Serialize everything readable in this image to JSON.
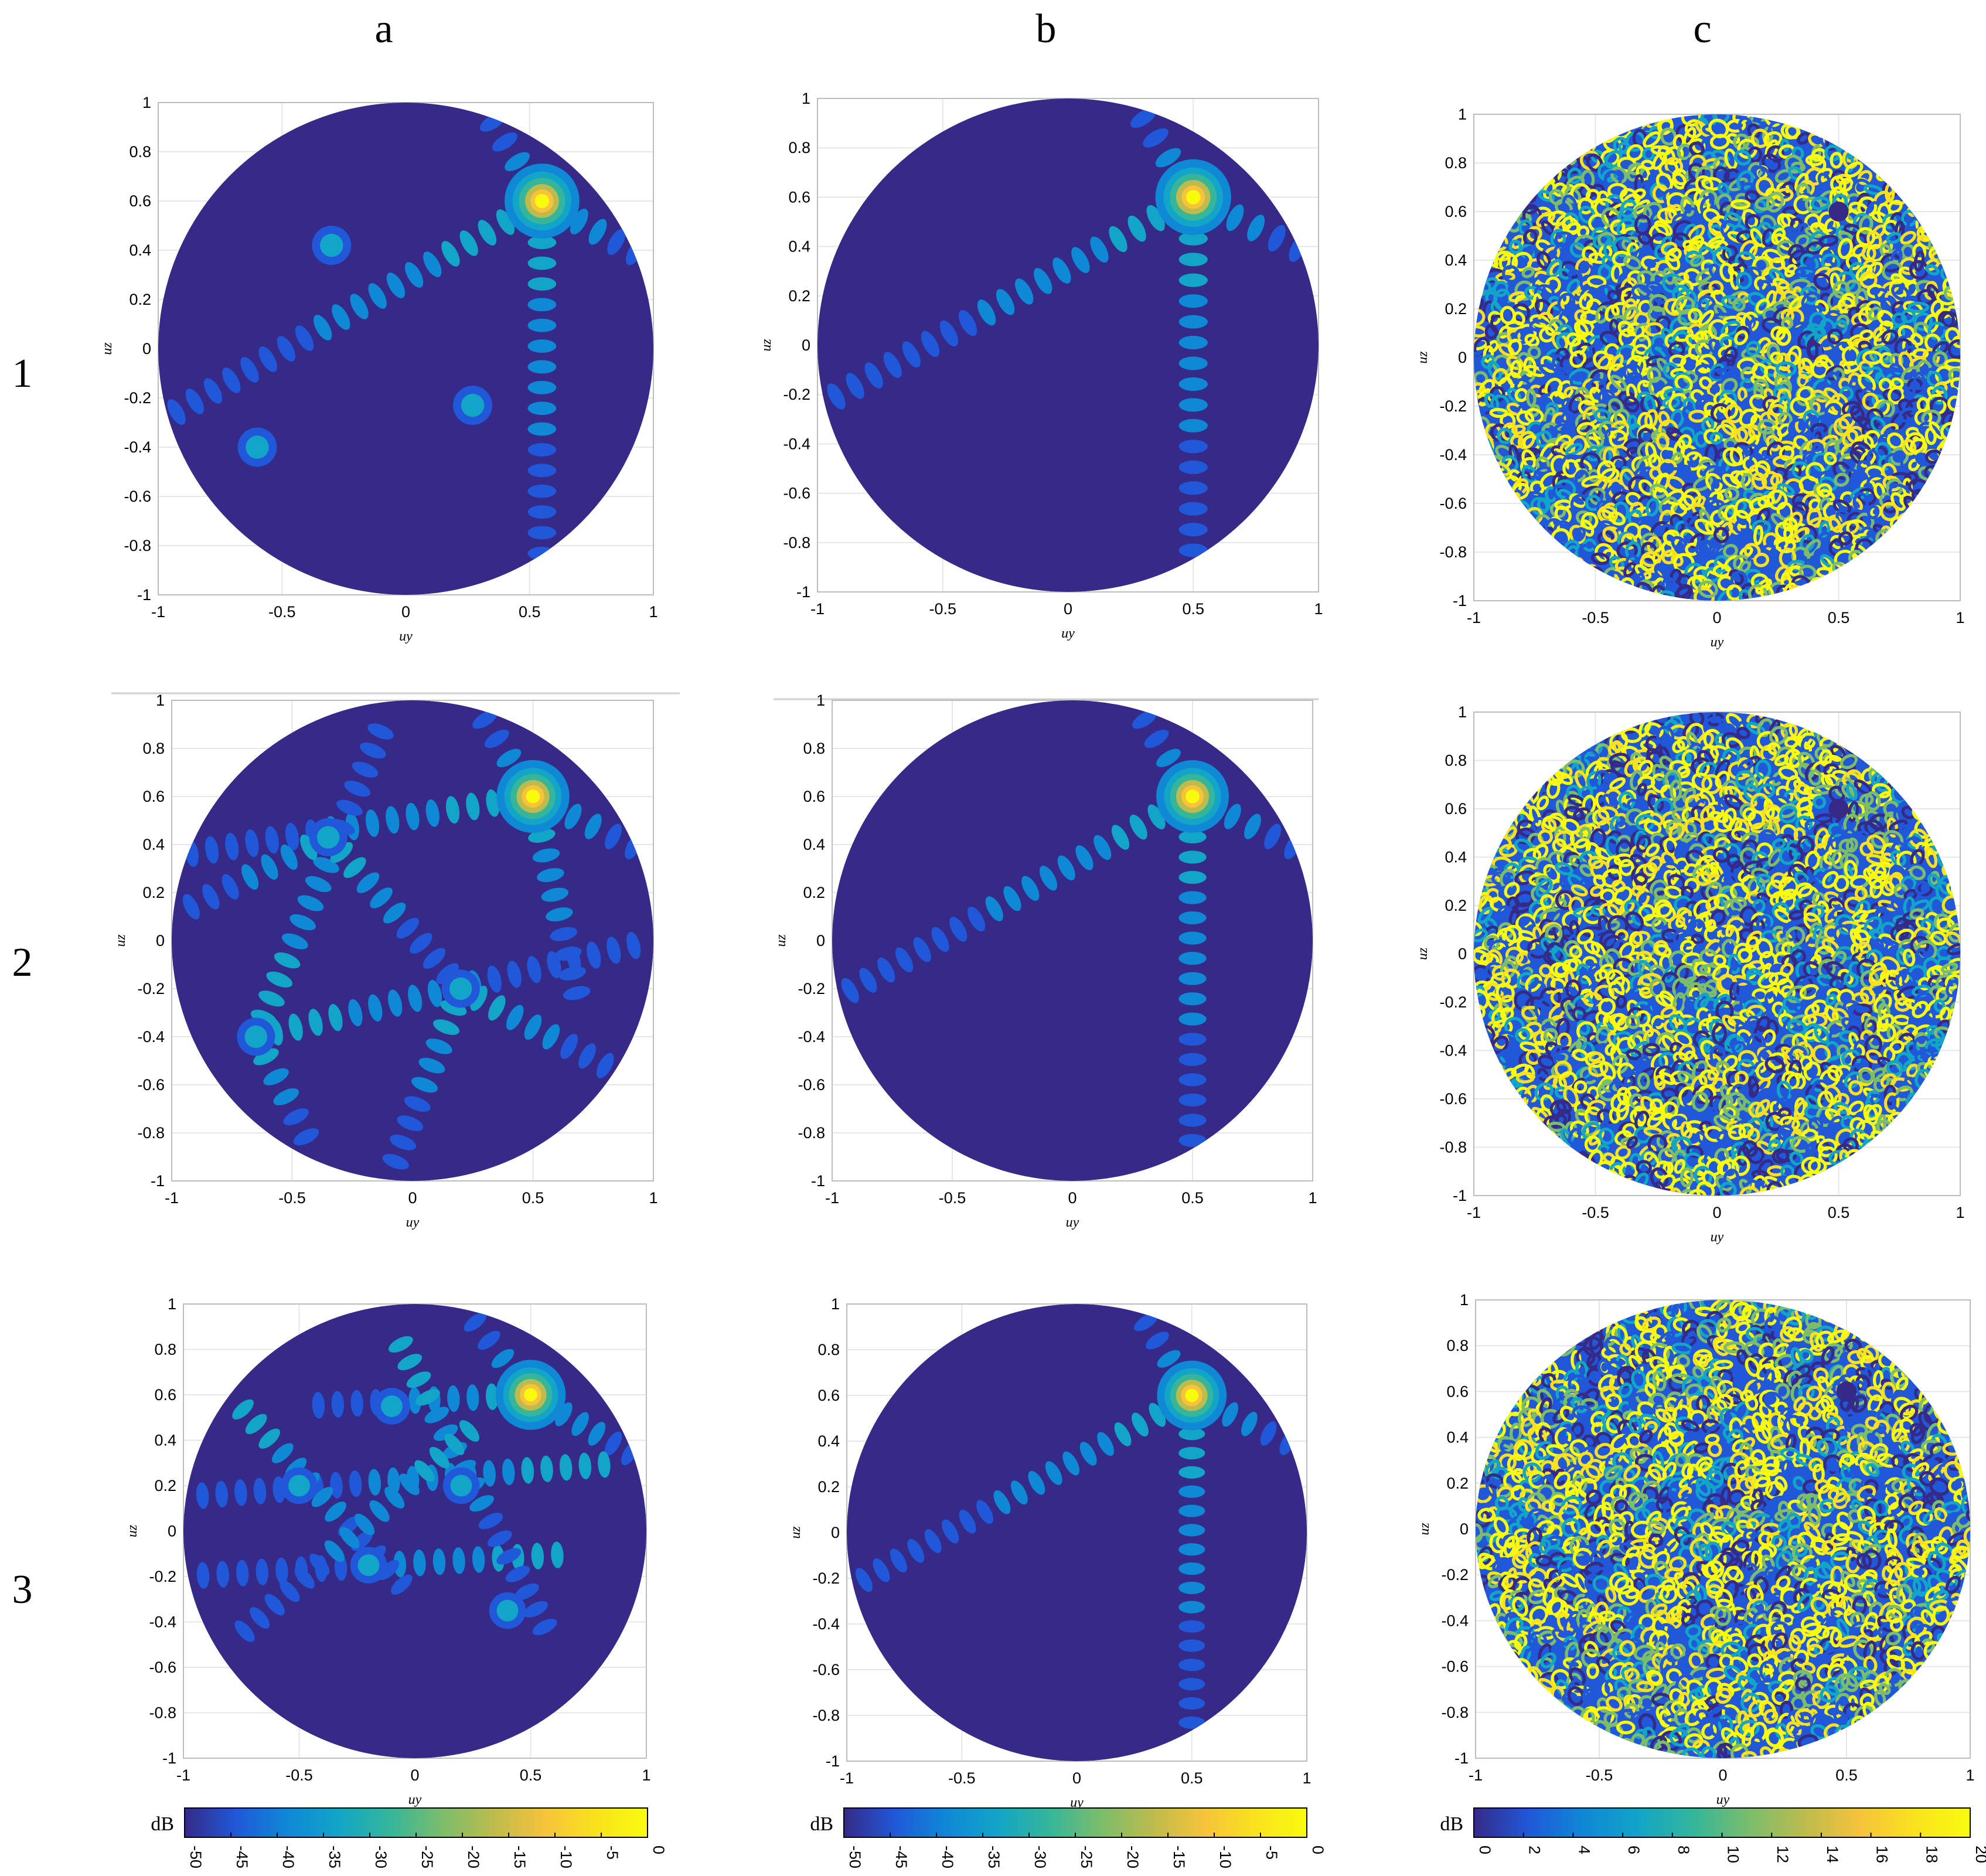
{
  "column_labels": [
    "a",
    "b",
    "c"
  ],
  "row_labels": [
    "1",
    "2",
    "3"
  ],
  "colors": {
    "background": "#ffffff",
    "axis": "#000000",
    "grid": "#e6e6e6",
    "parula": [
      "#352a87",
      "#2058d9",
      "#0f88d6",
      "#12a5c7",
      "#35b69a",
      "#7bbd6b",
      "#bdbb4e",
      "#f6c33b",
      "#f9e21d",
      "#f9fb0e"
    ]
  },
  "chart_data": [
    {
      "type": "heatmap",
      "panel": "1a",
      "xlabel": "uy",
      "ylabel": "uz",
      "xlim": [
        -1,
        1
      ],
      "ylim": [
        -1,
        1
      ],
      "xticks": [
        "-1",
        "-0.5",
        "0",
        "0.5",
        "1"
      ],
      "yticks": [
        "-1",
        "-0.8",
        "-0.6",
        "-0.4",
        "-0.2",
        "0",
        "0.2",
        "0.4",
        "0.6",
        "0.8",
        "1"
      ],
      "mask": "unit-circle",
      "grid": true,
      "colormap": "parula",
      "units": "dB",
      "main_beam": {
        "uy": 0.55,
        "uz": 0.6
      },
      "grating_lobes": [
        {
          "uy": -0.3,
          "uz": 0.42
        },
        {
          "uy": 0.27,
          "uz": -0.23
        },
        {
          "uy": -0.6,
          "uz": -0.4
        }
      ],
      "lobe_lines": [
        {
          "from": [
            0.55,
            0.6
          ],
          "to": [
            -1,
            -0.3
          ]
        },
        {
          "from": [
            0.55,
            0.6
          ],
          "to": [
            0.55,
            -1
          ]
        },
        {
          "from": [
            0.55,
            0.6
          ],
          "to": [
            0.3,
            1
          ]
        },
        {
          "from": [
            0.55,
            0.6
          ],
          "to": [
            1,
            0.35
          ]
        }
      ]
    },
    {
      "type": "heatmap",
      "panel": "1b",
      "xlabel": "uy",
      "ylabel": "uz",
      "xlim": [
        -1,
        1
      ],
      "ylim": [
        -1,
        1
      ],
      "xticks": [
        "-1",
        "-0.5",
        "0",
        "0.5",
        "1"
      ],
      "yticks": [
        "-1",
        "-0.8",
        "-0.6",
        "-0.4",
        "-0.2",
        "0",
        "0.2",
        "0.4",
        "0.6",
        "0.8",
        "1"
      ],
      "mask": "unit-circle",
      "grid": true,
      "colormap": "parula",
      "units": "dB",
      "main_beam": {
        "uy": 0.5,
        "uz": 0.6
      },
      "grating_lobes": [],
      "lobe_lines": [
        {
          "from": [
            0.5,
            0.6
          ],
          "to": [
            -1,
            -0.25
          ]
        },
        {
          "from": [
            0.5,
            0.6
          ],
          "to": [
            0.5,
            -1
          ]
        },
        {
          "from": [
            0.5,
            0.6
          ],
          "to": [
            0.25,
            1
          ]
        },
        {
          "from": [
            0.5,
            0.6
          ],
          "to": [
            1,
            0.35
          ]
        }
      ]
    },
    {
      "type": "heatmap",
      "panel": "1c",
      "xlabel": "uy",
      "ylabel": "uz",
      "xlim": [
        -1,
        1
      ],
      "ylim": [
        -1,
        1
      ],
      "xticks": [
        "-1",
        "-0.5",
        "0",
        "0.5",
        "1"
      ],
      "yticks": [
        "-1",
        "-0.8",
        "-0.6",
        "-0.4",
        "-0.2",
        "0",
        "0.2",
        "0.4",
        "0.6",
        "0.8",
        "1"
      ],
      "mask": "unit-circle",
      "grid": true,
      "colormap": "parula",
      "units": "dB difference",
      "main_beam": {
        "uy": 0.5,
        "uz": 0.6
      }
    },
    {
      "type": "heatmap",
      "panel": "2a",
      "xlabel": "uy",
      "ylabel": "uz",
      "xlim": [
        -1,
        1
      ],
      "ylim": [
        -1,
        1
      ],
      "xticks": [
        "-1",
        "-0.5",
        "0",
        "0.5",
        "1"
      ],
      "yticks": [
        "-1",
        "-0.8",
        "-0.6",
        "-0.4",
        "-0.2",
        "0",
        "0.2",
        "0.4",
        "0.6",
        "0.8",
        "1"
      ],
      "mask": "unit-circle",
      "grid": true,
      "colormap": "parula",
      "units": "dB",
      "main_beam": {
        "uy": 0.5,
        "uz": 0.6
      },
      "grating_lobes": [
        {
          "uy": -0.35,
          "uz": 0.43
        },
        {
          "uy": 0.2,
          "uz": -0.2
        },
        {
          "uy": -0.65,
          "uz": -0.4
        }
      ],
      "lobe_lines": [
        {
          "from": [
            0.5,
            0.6
          ],
          "to": [
            -1,
            0.35
          ]
        },
        {
          "from": [
            0.5,
            0.6
          ],
          "to": [
            0.25,
            1
          ]
        },
        {
          "from": [
            0.5,
            0.6
          ],
          "to": [
            0.7,
            -0.3
          ]
        },
        {
          "from": [
            0.5,
            0.6
          ],
          "to": [
            1,
            0.35
          ]
        },
        {
          "from": [
            -0.65,
            -0.4
          ],
          "to": [
            1,
            0
          ]
        },
        {
          "from": [
            -0.65,
            -0.4
          ],
          "to": [
            -0.1,
            0.95
          ]
        },
        {
          "from": [
            -0.65,
            -0.4
          ],
          "to": [
            -0.4,
            -0.9
          ]
        },
        {
          "from": [
            0.2,
            -0.2
          ],
          "to": [
            -0.1,
            -1
          ]
        },
        {
          "from": [
            0.2,
            -0.2
          ],
          "to": [
            0.95,
            -0.6
          ]
        },
        {
          "from": [
            -0.35,
            0.43
          ],
          "to": [
            0.2,
            -0.2
          ]
        },
        {
          "from": [
            -0.35,
            0.43
          ],
          "to": [
            -1,
            0.1
          ]
        }
      ]
    },
    {
      "type": "heatmap",
      "panel": "2b",
      "xlabel": "uy",
      "ylabel": "uz",
      "xlim": [
        -1,
        1
      ],
      "ylim": [
        -1,
        1
      ],
      "xticks": [
        "-1",
        "-0.5",
        "0",
        "0.5",
        "1"
      ],
      "yticks": [
        "-1",
        "-0.8",
        "-0.6",
        "-0.4",
        "-0.2",
        "0",
        "0.2",
        "0.4",
        "0.6",
        "0.8",
        "1"
      ],
      "mask": "unit-circle",
      "grid": true,
      "colormap": "parula",
      "units": "dB",
      "main_beam": {
        "uy": 0.5,
        "uz": 0.6
      },
      "grating_lobes": [],
      "lobe_lines": [
        {
          "from": [
            0.5,
            0.6
          ],
          "to": [
            -1,
            -0.25
          ]
        },
        {
          "from": [
            0.5,
            0.6
          ],
          "to": [
            0.5,
            -1
          ]
        },
        {
          "from": [
            0.5,
            0.6
          ],
          "to": [
            0.25,
            1
          ]
        },
        {
          "from": [
            0.5,
            0.6
          ],
          "to": [
            1,
            0.35
          ]
        }
      ]
    },
    {
      "type": "heatmap",
      "panel": "2c",
      "xlabel": "uy",
      "ylabel": "uz",
      "xlim": [
        -1,
        1
      ],
      "ylim": [
        -1,
        1
      ],
      "xticks": [
        "-1",
        "-0.5",
        "0",
        "0.5",
        "1"
      ],
      "yticks": [
        "-1",
        "-0.8",
        "-0.6",
        "-0.4",
        "-0.2",
        "0",
        "0.2",
        "0.4",
        "0.6",
        "0.8",
        "1"
      ],
      "mask": "unit-circle",
      "grid": true,
      "colormap": "parula",
      "units": "dB difference",
      "main_beam": {
        "uy": 0.5,
        "uz": 0.6
      }
    },
    {
      "type": "heatmap",
      "panel": "3a",
      "xlabel": "uy",
      "ylabel": "uz",
      "xlim": [
        -1,
        1
      ],
      "ylim": [
        -1,
        1
      ],
      "xticks": [
        "-1",
        "-0.5",
        "0",
        "0.5",
        "1"
      ],
      "yticks": [
        "-1",
        "-0.8",
        "-0.6",
        "-0.4",
        "-0.2",
        "0",
        "0.2",
        "0.4",
        "0.6",
        "0.8",
        "1"
      ],
      "mask": "unit-circle",
      "grid": true,
      "colormap": "parula",
      "units": "dB",
      "main_beam": {
        "uy": 0.5,
        "uz": 0.6
      },
      "grating_lobes": [
        {
          "uy": -0.1,
          "uz": 0.55
        },
        {
          "uy": 0.2,
          "uz": 0.2
        },
        {
          "uy": -0.5,
          "uz": 0.2
        },
        {
          "uy": -0.2,
          "uz": -0.15
        },
        {
          "uy": 0.4,
          "uz": -0.35
        }
      ],
      "lobe_lines": [
        {
          "from": [
            0.5,
            0.6
          ],
          "to": [
            -0.5,
            0.55
          ]
        },
        {
          "from": [
            0.5,
            0.6
          ],
          "to": [
            0.2,
            1
          ]
        },
        {
          "from": [
            0.5,
            0.6
          ],
          "to": [
            1,
            0.3
          ]
        },
        {
          "from": [
            0.9,
            0.3
          ],
          "to": [
            -1,
            0.15
          ]
        },
        {
          "from": [
            0.7,
            -0.1
          ],
          "to": [
            -1,
            -0.2
          ]
        },
        {
          "from": [
            -0.1,
            0.9
          ],
          "to": [
            0.6,
            -0.5
          ]
        },
        {
          "from": [
            -0.8,
            0.6
          ],
          "to": [
            0.0,
            -0.3
          ]
        },
        {
          "from": [
            0.3,
            0.5
          ],
          "to": [
            -0.8,
            -0.5
          ]
        }
      ]
    },
    {
      "type": "heatmap",
      "panel": "3b",
      "xlabel": "uy",
      "ylabel": "uz",
      "xlim": [
        -1,
        1
      ],
      "ylim": [
        -1,
        1
      ],
      "xticks": [
        "-1",
        "-0.5",
        "0",
        "0.5",
        "1"
      ],
      "yticks": [
        "-1",
        "-0.8",
        "-0.6",
        "-0.4",
        "-0.2",
        "0",
        "0.2",
        "0.4",
        "0.6",
        "0.8",
        "1"
      ],
      "mask": "unit-circle",
      "grid": true,
      "colormap": "parula",
      "units": "dB",
      "main_beam": {
        "uy": 0.5,
        "uz": 0.6
      },
      "grating_lobes": [],
      "lobe_lines": [
        {
          "from": [
            0.5,
            0.6
          ],
          "to": [
            -1,
            -0.25
          ]
        },
        {
          "from": [
            0.5,
            0.6
          ],
          "to": [
            0.5,
            -1
          ]
        },
        {
          "from": [
            0.5,
            0.6
          ],
          "to": [
            0.25,
            1
          ]
        },
        {
          "from": [
            0.5,
            0.6
          ],
          "to": [
            1,
            0.35
          ]
        }
      ]
    },
    {
      "type": "heatmap",
      "panel": "3c",
      "xlabel": "uy",
      "ylabel": "uz",
      "xlim": [
        -1,
        1
      ],
      "ylim": [
        -1,
        1
      ],
      "xticks": [
        "-1",
        "-0.5",
        "0",
        "0.5",
        "1"
      ],
      "yticks": [
        "-1",
        "-0.8",
        "-0.6",
        "-0.4",
        "-0.2",
        "0",
        "0.2",
        "0.4",
        "0.6",
        "0.8",
        "1"
      ],
      "mask": "unit-circle",
      "grid": true,
      "colormap": "parula",
      "units": "dB difference",
      "main_beam": {
        "uy": 0.5,
        "uz": 0.6
      }
    }
  ],
  "colorbars": [
    {
      "label": "dB",
      "ticks": [
        "-50",
        "-45",
        "-40",
        "-35",
        "-30",
        "-25",
        "-20",
        "-15",
        "-10",
        "-5",
        "0"
      ],
      "range": [
        -50,
        0
      ]
    },
    {
      "label": "dB",
      "ticks": [
        "-50",
        "-45",
        "-40",
        "-35",
        "-30",
        "-25",
        "-20",
        "-15",
        "-10",
        "-5",
        "0"
      ],
      "range": [
        -50,
        0
      ]
    },
    {
      "label": "dB",
      "ticks": [
        "0",
        "2",
        "4",
        "6",
        "8",
        "10",
        "12",
        "14",
        "16",
        "18",
        "20"
      ],
      "range": [
        0,
        20
      ]
    }
  ]
}
